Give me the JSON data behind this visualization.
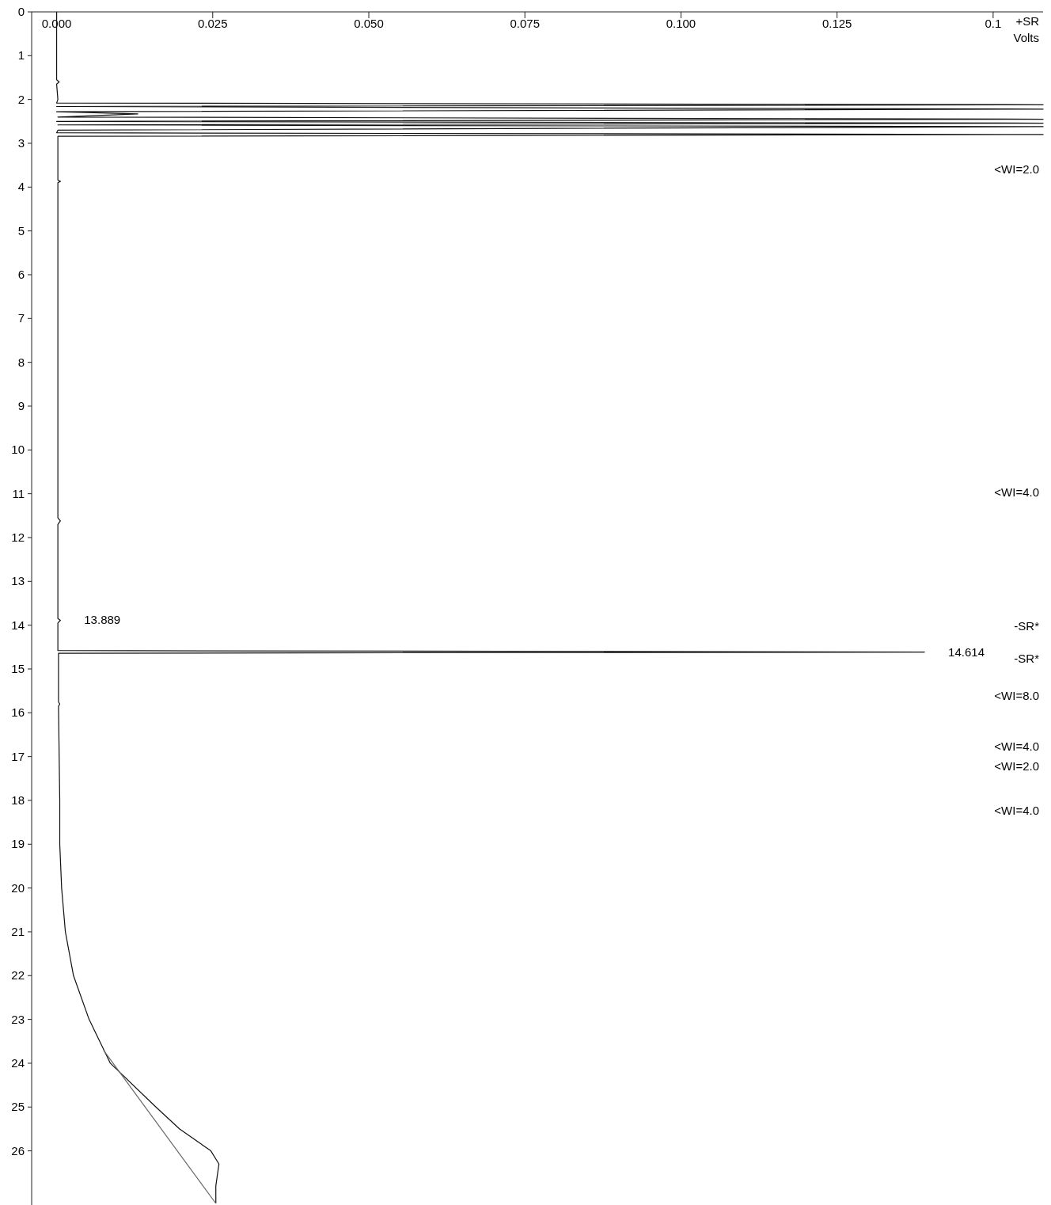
{
  "chart_data": {
    "type": "line",
    "xlabel": "Volts",
    "xlim": [
      -0.004,
      0.158
    ],
    "ylim": [
      27.2,
      0
    ],
    "xticks": [
      {
        "value": 0,
        "label": "0.000"
      },
      {
        "value": 0.025,
        "label": "0.025"
      },
      {
        "value": 0.05,
        "label": "0.050"
      },
      {
        "value": 0.075,
        "label": "0.075"
      },
      {
        "value": 0.1,
        "label": "0.100"
      },
      {
        "value": 0.125,
        "label": "0.125"
      },
      {
        "value": 0.15,
        "label": "0.1"
      }
    ],
    "yticks": [
      0,
      1,
      2,
      3,
      4,
      5,
      6,
      7,
      8,
      9,
      10,
      11,
      12,
      13,
      14,
      15,
      16,
      17,
      18,
      19,
      20,
      21,
      22,
      23,
      24,
      25,
      26
    ],
    "grid": false,
    "line_style": "solid",
    "marker": "none",
    "series": [
      {
        "color": "#111111",
        "x": [
          0,
          0,
          0.0004,
          0,
          0.0002,
          0,
          0.158,
          0,
          0.158,
          0,
          0.013,
          0.0002,
          0.158,
          0,
          0.158,
          0.0002,
          0.158,
          0.0002,
          0,
          0.158,
          0.0002,
          0.0002,
          0.0006,
          0.0002,
          0.0002,
          0.0006,
          0.0002,
          0.0002,
          0.0006,
          0.0002,
          0.0002,
          0.139,
          0.0003,
          0.0003,
          0.0003,
          0.0005,
          0.0003,
          0.0005,
          0.0005,
          0.0008,
          0.0014,
          0.0027,
          0.0052,
          0.0086,
          0.0159,
          0.0197,
          0.0247,
          0.026,
          0.0255,
          0.0255
        ],
        "values": [
          0,
          1.55,
          1.6,
          1.65,
          2.0,
          2.08,
          2.12,
          2.16,
          2.22,
          2.28,
          2.33,
          2.4,
          2.45,
          2.5,
          2.54,
          2.58,
          2.62,
          2.7,
          2.76,
          2.8,
          2.84,
          3.84,
          3.87,
          3.9,
          11.55,
          11.62,
          11.7,
          13.85,
          13.889,
          13.95,
          14.58,
          14.614,
          14.64,
          14.7,
          15.75,
          15.8,
          15.85,
          18,
          19,
          20,
          21,
          22,
          23,
          24,
          25,
          25.5,
          26,
          26.3,
          26.8,
          27.2
        ]
      },
      {
        "color": "#666666",
        "x": [
          0.0075,
          0.0255
        ],
        "values": [
          23.7,
          27.2
        ]
      }
    ],
    "annotations": [
      "+SR",
      {
        "text": "13.889",
        "x": 0.0006,
        "y": 13.889
      },
      {
        "text": "14.614",
        "x": 0.139,
        "y": 14.614
      },
      "<WI=2.0",
      "<WI=4.0",
      "-SR*",
      "-SR*",
      "<WI=8.0",
      "<WI=4.0",
      "<WI=2.0",
      "<WI=4.0"
    ]
  }
}
